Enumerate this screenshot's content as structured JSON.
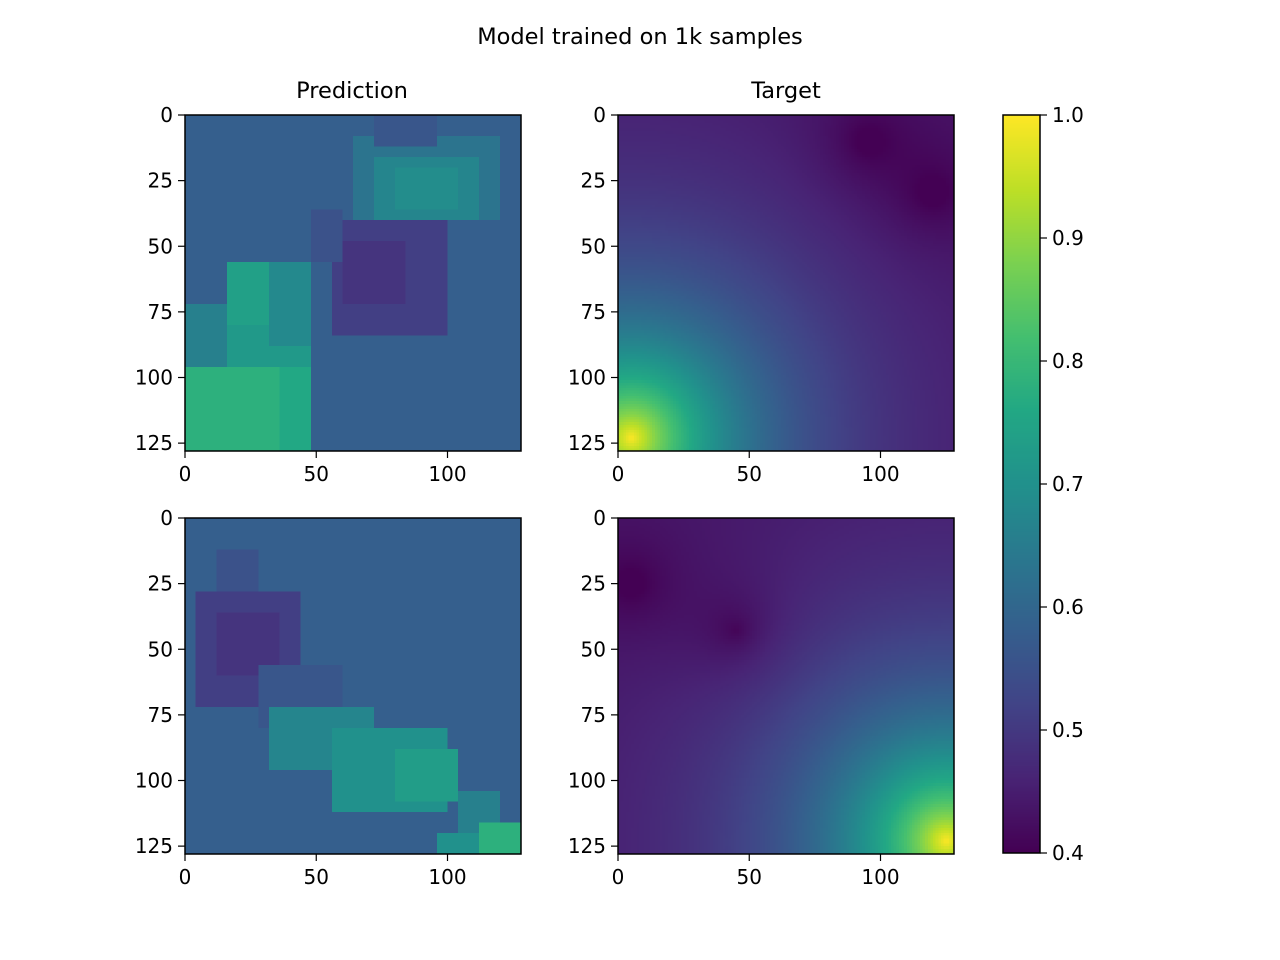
{
  "figure": {
    "suptitle": "Model trained on 1k samples",
    "column_titles": [
      "Prediction",
      "Target"
    ]
  },
  "chart_data": [
    {
      "type": "heatmap",
      "panel": "row-1-prediction",
      "title": "Prediction",
      "grid_size": [
        128,
        128
      ],
      "xlim": [
        0,
        128
      ],
      "ylim": [
        128,
        0
      ],
      "x_ticks": [
        0,
        50,
        100
      ],
      "y_ticks": [
        0,
        25,
        50,
        75,
        100,
        125
      ],
      "background_value": 0.58,
      "blocks": [
        {
          "x": [
            0,
            48
          ],
          "y": [
            88,
            128
          ],
          "value": 0.76
        },
        {
          "x": [
            0,
            36
          ],
          "y": [
            96,
            128
          ],
          "value": 0.78
        },
        {
          "x": [
            16,
            48
          ],
          "y": [
            64,
            96
          ],
          "value": 0.72
        },
        {
          "x": [
            16,
            32
          ],
          "y": [
            56,
            80
          ],
          "value": 0.74
        },
        {
          "x": [
            32,
            48
          ],
          "y": [
            56,
            88
          ],
          "value": 0.68
        },
        {
          "x": [
            0,
            16
          ],
          "y": [
            72,
            96
          ],
          "value": 0.66
        },
        {
          "x": [
            56,
            100
          ],
          "y": [
            40,
            84
          ],
          "value": 0.51
        },
        {
          "x": [
            60,
            84
          ],
          "y": [
            48,
            72
          ],
          "value": 0.49
        },
        {
          "x": [
            48,
            60
          ],
          "y": [
            36,
            56
          ],
          "value": 0.55
        },
        {
          "x": [
            64,
            120
          ],
          "y": [
            8,
            40
          ],
          "value": 0.63
        },
        {
          "x": [
            72,
            112
          ],
          "y": [
            16,
            40
          ],
          "value": 0.67
        },
        {
          "x": [
            80,
            104
          ],
          "y": [
            20,
            36
          ],
          "value": 0.69
        },
        {
          "x": [
            72,
            96
          ],
          "y": [
            0,
            12
          ],
          "value": 0.56
        }
      ]
    },
    {
      "type": "heatmap",
      "panel": "row-1-target",
      "title": "Target",
      "grid_size": [
        128,
        128
      ],
      "xlim": [
        0,
        128
      ],
      "ylim": [
        128,
        0
      ],
      "x_ticks": [
        0,
        50,
        100
      ],
      "y_ticks": [
        0,
        25,
        50,
        75,
        100,
        125
      ],
      "high_point": [
        5,
        123
      ],
      "low_points": [
        [
          95,
          10
        ],
        [
          120,
          30
        ]
      ]
    },
    {
      "type": "heatmap",
      "panel": "row-2-prediction",
      "title": "",
      "grid_size": [
        128,
        128
      ],
      "xlim": [
        0,
        128
      ],
      "ylim": [
        128,
        0
      ],
      "x_ticks": [
        0,
        50,
        100
      ],
      "y_ticks": [
        0,
        25,
        50,
        75,
        100,
        125
      ],
      "background_value": 0.58,
      "blocks": [
        {
          "x": [
            4,
            44
          ],
          "y": [
            28,
            72
          ],
          "value": 0.51
        },
        {
          "x": [
            12,
            36
          ],
          "y": [
            36,
            60
          ],
          "value": 0.49
        },
        {
          "x": [
            12,
            28
          ],
          "y": [
            12,
            28
          ],
          "value": 0.55
        },
        {
          "x": [
            28,
            60
          ],
          "y": [
            56,
            80
          ],
          "value": 0.56
        },
        {
          "x": [
            32,
            72
          ],
          "y": [
            72,
            96
          ],
          "value": 0.67
        },
        {
          "x": [
            56,
            100
          ],
          "y": [
            80,
            112
          ],
          "value": 0.7
        },
        {
          "x": [
            80,
            104
          ],
          "y": [
            88,
            108
          ],
          "value": 0.73
        },
        {
          "x": [
            104,
            120
          ],
          "y": [
            104,
            120
          ],
          "value": 0.66
        },
        {
          "x": [
            112,
            128
          ],
          "y": [
            116,
            128
          ],
          "value": 0.78
        },
        {
          "x": [
            96,
            112
          ],
          "y": [
            120,
            128
          ],
          "value": 0.7
        }
      ]
    },
    {
      "type": "heatmap",
      "panel": "row-2-target",
      "title": "",
      "grid_size": [
        128,
        128
      ],
      "xlim": [
        0,
        128
      ],
      "ylim": [
        128,
        0
      ],
      "x_ticks": [
        0,
        50,
        100
      ],
      "y_ticks": [
        0,
        25,
        50,
        75,
        100,
        125
      ],
      "high_point": [
        125,
        123
      ],
      "low_points": [
        [
          5,
          25
        ],
        [
          45,
          43
        ]
      ]
    }
  ],
  "colorbar": {
    "colormap": "viridis",
    "range": [
      0.4,
      1.0
    ],
    "ticks": [
      "0.4",
      "0.5",
      "0.6",
      "0.7",
      "0.8",
      "0.9",
      "1.0"
    ]
  }
}
